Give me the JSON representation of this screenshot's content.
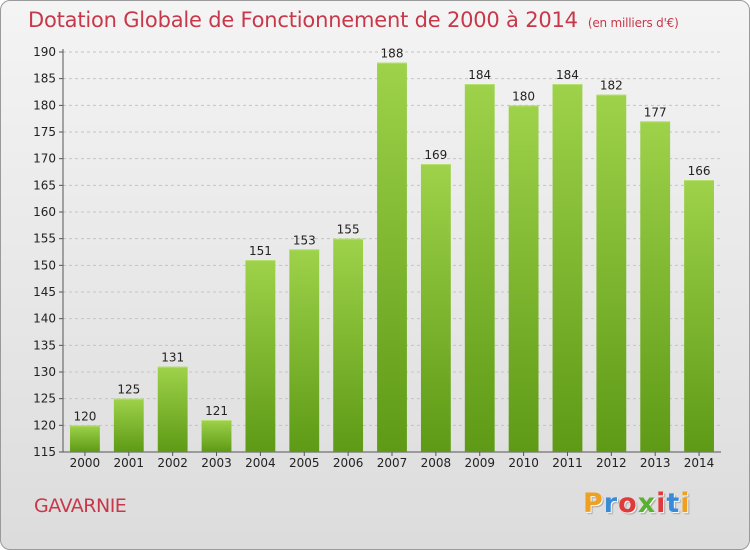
{
  "header": {
    "title": "Dotation Globale de Fonctionnement de 2000 à 2014",
    "subtitle": "(en milliers d'€)"
  },
  "footer": {
    "city": "GAVARNIE",
    "logo_text": "Proxiti",
    "logo_colors": [
      "#f0a020",
      "#3a8ad8",
      "#e03a3a",
      "#5ab030",
      "#e03a3a",
      "#3a8ad8",
      "#f0a020"
    ]
  },
  "chart_data": {
    "type": "bar",
    "categories": [
      "2000",
      "2001",
      "2002",
      "2003",
      "2004",
      "2005",
      "2006",
      "2007",
      "2008",
      "2009",
      "2010",
      "2011",
      "2012",
      "2013",
      "2014"
    ],
    "values": [
      120,
      125,
      131,
      121,
      151,
      153,
      155,
      188,
      169,
      184,
      180,
      184,
      182,
      177,
      166
    ],
    "title": "Dotation Globale de Fonctionnement de 2000 à 2014",
    "subtitle": "(en milliers d'€)",
    "xlabel": "",
    "ylabel": "",
    "ylim": [
      115,
      190
    ],
    "yticks": [
      115,
      120,
      125,
      130,
      135,
      140,
      145,
      150,
      155,
      160,
      165,
      170,
      175,
      180,
      185,
      190
    ],
    "grid": true,
    "legend": "none",
    "bar_color_top": "#9ed24a",
    "bar_color_bottom": "#5e9a16"
  }
}
